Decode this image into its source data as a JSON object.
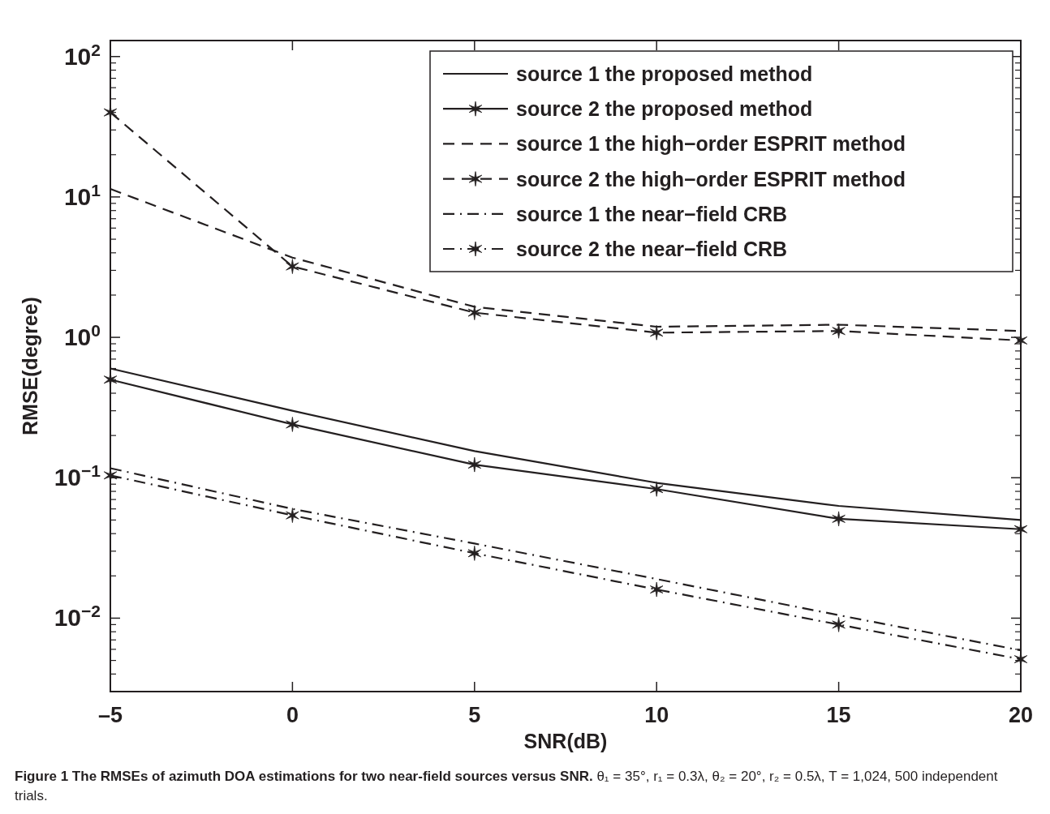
{
  "chart_data": {
    "type": "line",
    "xlabel": "SNR(dB)",
    "ylabel": "RMSE(degree)",
    "x": [
      -5,
      0,
      5,
      10,
      15,
      20
    ],
    "xlim": [
      -5,
      20
    ],
    "xticks": [
      {
        "value": -5,
        "label": "–5"
      },
      0,
      5,
      10,
      15,
      20
    ],
    "log": true,
    "ylim": [
      0.003,
      130
    ],
    "yticks": [
      {
        "value": 0.01,
        "label": "10$^{−2}$"
      },
      {
        "value": 0.1,
        "label": "10$^{−1}$"
      },
      {
        "value": 1,
        "label": "10$^{0}$"
      },
      {
        "value": 10,
        "label": "10$^{1}$"
      },
      {
        "value": 100,
        "label": "10$^{2}$"
      }
    ],
    "grid": false,
    "legend": "top right",
    "series": [
      {
        "name": "source 1  the proposed method",
        "color": "#231f20",
        "line_style": "solid",
        "marker": "none",
        "values": [
          0.6,
          0.3,
          0.155,
          0.092,
          0.063,
          0.05
        ]
      },
      {
        "name": "source 2  the proposed method",
        "color": "#231f20",
        "line_style": "solid",
        "marker": "cross",
        "values": [
          0.5,
          0.24,
          0.124,
          0.083,
          0.051,
          0.043
        ]
      },
      {
        "name": "source 1  the high−order ESPRIT method",
        "color": "#231f20",
        "line_style": "dashed",
        "marker": "none",
        "values": [
          11.4,
          3.7,
          1.65,
          1.19,
          1.23,
          1.11
        ]
      },
      {
        "name": "source 2  the high−order ESPRIT method",
        "color": "#231f20",
        "line_style": "dashed",
        "marker": "cross",
        "values": [
          40,
          3.2,
          1.5,
          1.08,
          1.11,
          0.95
        ]
      },
      {
        "name": "source 1  the near−field CRB",
        "color": "#231f20",
        "line_style": "dashdot",
        "marker": "none",
        "values": [
          0.117,
          0.06,
          0.034,
          0.019,
          0.0105,
          0.0059
        ]
      },
      {
        "name": "source 2  the near−field CRB",
        "color": "#231f20",
        "line_style": "dashdot",
        "marker": "cross",
        "values": [
          0.104,
          0.054,
          0.029,
          0.016,
          0.009,
          0.0051
        ]
      }
    ],
    "annotations": [
      "Figure 1 The RMSEs of azimuth DOA estimations for two near-field sources versus SNR.",
      "θ₁ = 35°, r₁ = 0.3λ, θ₂ = 20°, r₂ = 0.5λ, T = 1,024, 500 independent trials."
    ]
  }
}
